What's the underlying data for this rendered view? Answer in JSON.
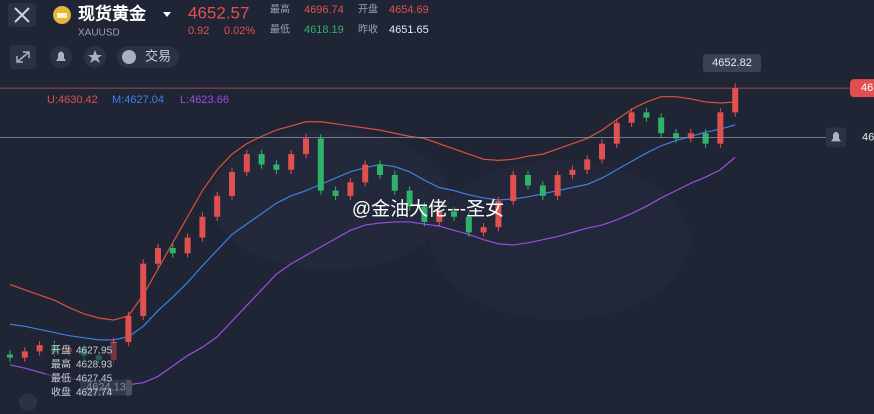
{
  "header": {
    "name": "现货黄金",
    "symbol": "XAUUSD",
    "price": "4652.57",
    "change": "0.92",
    "change_pct": "0.02%",
    "stats": [
      {
        "label": "最高",
        "value": "4696.74"
      },
      {
        "label": "开盘",
        "value": "4654.69"
      },
      {
        "label": "最低",
        "value": "4618.19"
      },
      {
        "label": "昨收",
        "value": "4651.65"
      }
    ]
  },
  "toolbar": {
    "trade": "交易"
  },
  "indicator": {
    "upper": "U:4630.42",
    "middle": "M:4627.04",
    "lower": "L:4623.66"
  },
  "watermark": "@金油大佬---圣女",
  "chart_data": {
    "type": "candlestick",
    "ylim": [
      4621.6,
      4653.6
    ],
    "up_color": "#e0504f",
    "down_color": "#2fb36b",
    "open": [
      4627.3,
      4627.0,
      4627.6,
      4628.2,
      4627.5,
      4627.9,
      4627.2,
      4626.8,
      4628.5,
      4631.0,
      4636.0,
      4637.5,
      4637.0,
      4638.5,
      4640.5,
      4642.5,
      4644.8,
      4646.5,
      4645.5,
      4645.0,
      4646.5,
      4648.0,
      4643.0,
      4642.5,
      4643.8,
      4645.5,
      4644.5,
      4643.0,
      4641.5,
      4640.0,
      4641.0,
      4640.5,
      4639.0,
      4639.5,
      4642.0,
      4644.5,
      4643.5,
      4642.5,
      4644.5,
      4645.0,
      4646.0,
      4647.5,
      4649.5,
      4650.5,
      4650.0,
      4648.5,
      4648.0,
      4648.5,
      4647.5,
      4650.5
    ],
    "high": [
      4627.7,
      4628.0,
      4628.6,
      4628.6,
      4628.3,
      4628.3,
      4627.6,
      4628.9,
      4631.4,
      4636.4,
      4637.9,
      4637.9,
      4638.9,
      4640.9,
      4642.9,
      4645.2,
      4646.9,
      4646.9,
      4645.9,
      4646.9,
      4648.4,
      4648.4,
      4643.4,
      4644.2,
      4645.9,
      4645.9,
      4644.9,
      4643.4,
      4641.9,
      4641.4,
      4641.4,
      4640.9,
      4639.9,
      4642.4,
      4644.9,
      4644.9,
      4643.9,
      4644.9,
      4645.4,
      4646.4,
      4647.9,
      4649.9,
      4650.9,
      4650.9,
      4650.4,
      4648.9,
      4648.9,
      4648.9,
      4650.9,
      4653.3
    ],
    "low": [
      4626.6,
      4626.6,
      4627.2,
      4627.1,
      4627.1,
      4626.8,
      4626.4,
      4626.4,
      4628.1,
      4630.6,
      4635.6,
      4636.6,
      4636.6,
      4638.1,
      4640.1,
      4642.1,
      4644.4,
      4645.1,
      4644.6,
      4644.6,
      4646.1,
      4642.6,
      4642.1,
      4642.1,
      4643.4,
      4644.1,
      4642.6,
      4641.1,
      4639.6,
      4639.6,
      4640.1,
      4638.6,
      4638.6,
      4639.1,
      4641.6,
      4643.1,
      4642.1,
      4642.1,
      4644.1,
      4644.6,
      4645.6,
      4647.1,
      4649.1,
      4649.6,
      4648.1,
      4647.6,
      4647.6,
      4647.1,
      4647.1,
      4650.1
    ],
    "close": [
      4627.0,
      4627.6,
      4628.2,
      4627.5,
      4627.9,
      4627.2,
      4626.8,
      4628.5,
      4631.0,
      4636.0,
      4637.5,
      4637.0,
      4638.5,
      4640.5,
      4642.5,
      4644.8,
      4646.5,
      4645.5,
      4645.0,
      4646.5,
      4648.0,
      4643.0,
      4642.5,
      4643.8,
      4645.5,
      4644.5,
      4643.0,
      4641.5,
      4640.0,
      4641.0,
      4640.5,
      4639.0,
      4639.5,
      4642.0,
      4644.5,
      4643.5,
      4642.5,
      4644.5,
      4645.0,
      4646.0,
      4647.5,
      4649.5,
      4650.5,
      4650.0,
      4648.5,
      4648.0,
      4648.5,
      4647.5,
      4650.5,
      4652.82
    ],
    "bands": {
      "upper_color": "#d9523d",
      "middle_color": "#3e7fe0",
      "lower_color": "#9b4de0",
      "upper": [
        4634.0,
        4633.5,
        4633.0,
        4632.5,
        4631.8,
        4631.2,
        4630.8,
        4630.6,
        4631.0,
        4633.0,
        4635.5,
        4638.0,
        4640.5,
        4643.0,
        4645.0,
        4646.5,
        4647.5,
        4648.2,
        4648.8,
        4649.2,
        4649.6,
        4649.6,
        4649.4,
        4649.2,
        4649.0,
        4648.8,
        4648.5,
        4648.2,
        4648.0,
        4647.5,
        4647.0,
        4646.5,
        4646.0,
        4645.9,
        4646.0,
        4646.3,
        4646.5,
        4647.0,
        4647.5,
        4648.0,
        4648.8,
        4649.8,
        4650.8,
        4651.5,
        4652.0,
        4652.0,
        4651.8,
        4651.5,
        4651.4,
        4651.5
      ],
      "middle": [
        4630.2,
        4630.0,
        4629.7,
        4629.4,
        4629.1,
        4628.9,
        4628.7,
        4628.7,
        4629.0,
        4630.0,
        4631.5,
        4632.8,
        4634.2,
        4635.8,
        4637.3,
        4638.8,
        4639.8,
        4640.8,
        4641.8,
        4642.5,
        4643.0,
        4643.6,
        4644.2,
        4644.8,
        4645.2,
        4645.5,
        4645.3,
        4644.8,
        4644.0,
        4643.3,
        4643.0,
        4642.6,
        4642.3,
        4642.1,
        4642.2,
        4642.4,
        4642.7,
        4643.0,
        4643.3,
        4643.6,
        4644.2,
        4645.0,
        4645.8,
        4646.6,
        4647.3,
        4647.8,
        4648.2,
        4648.6,
        4648.9,
        4649.3
      ],
      "lower": [
        4626.3,
        4626.0,
        4625.6,
        4625.2,
        4625.0,
        4624.8,
        4624.6,
        4624.5,
        4624.4,
        4624.6,
        4625.2,
        4626.2,
        4627.2,
        4628.0,
        4629.0,
        4630.5,
        4632.0,
        4633.5,
        4635.0,
        4636.0,
        4636.8,
        4637.6,
        4638.4,
        4639.2,
        4639.7,
        4639.9,
        4640.0,
        4640.0,
        4639.8,
        4639.6,
        4639.2,
        4638.8,
        4638.3,
        4637.9,
        4637.8,
        4638.0,
        4638.3,
        4638.6,
        4639.0,
        4639.4,
        4639.7,
        4640.2,
        4640.8,
        4641.5,
        4642.3,
        4643.0,
        4643.7,
        4644.3,
        4645.0,
        4646.2
      ]
    },
    "last_price": 4652.82,
    "last_price_edge_label": "46",
    "alert": {
      "value": 4648.1,
      "label": "46"
    },
    "crosshair": {
      "value": 4624.13,
      "info": [
        {
          "label": "开盘",
          "value": "4627.95"
        },
        {
          "label": "最高",
          "value": "4628.93"
        },
        {
          "label": "最低",
          "value": "4627.45"
        },
        {
          "label": "收盘",
          "value": "4627.74"
        }
      ]
    }
  }
}
